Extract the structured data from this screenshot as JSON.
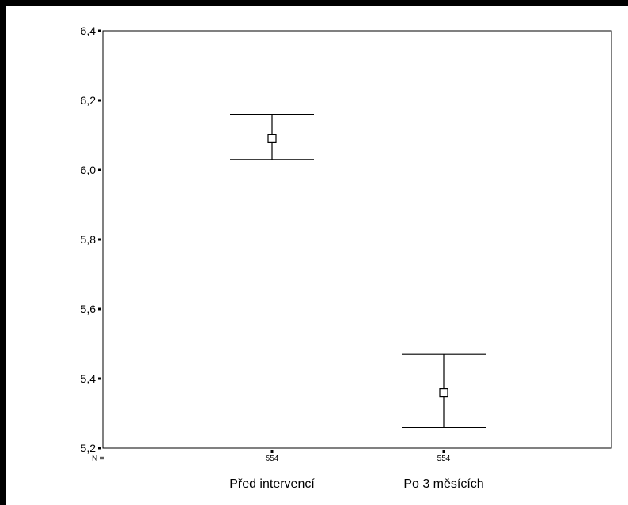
{
  "chart_data": {
    "type": "errorbar",
    "title": "",
    "xlabel": "",
    "ylabel": "",
    "categories": [
      "Před intervencí",
      "Po 3 měsících"
    ],
    "n_label": "N =",
    "n_values": [
      "554",
      "554"
    ],
    "series": [
      {
        "mean": [
          6.09,
          5.36
        ],
        "lower": [
          6.03,
          5.26
        ],
        "upper": [
          6.16,
          5.47
        ]
      }
    ],
    "ylim": [
      5.2,
      6.4
    ],
    "yticks": [
      "6,4",
      "6,2",
      "6,0",
      "5,8",
      "5,6",
      "5,4",
      "5,2"
    ],
    "ytick_values": [
      6.4,
      6.2,
      6.0,
      5.8,
      5.6,
      5.4,
      5.2
    ],
    "grid": false,
    "colors": {
      "background": "#000000",
      "plot": "#ffffff",
      "ink": "#000000"
    }
  }
}
